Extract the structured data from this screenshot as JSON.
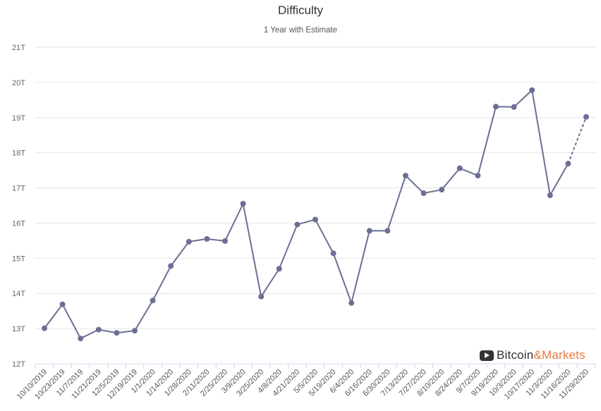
{
  "chart_data": {
    "type": "line",
    "title": "Difficulty",
    "subtitle": "1 Year with Estimate",
    "xlabel": "",
    "ylabel": "",
    "ylim": [
      12,
      21
    ],
    "ytick_labels": [
      "12T",
      "13T",
      "14T",
      "15T",
      "16T",
      "17T",
      "18T",
      "19T",
      "20T",
      "21T"
    ],
    "categories": [
      "10/10/2019",
      "10/23/2019",
      "11/7/2019",
      "11/21/2019",
      "12/5/2019",
      "12/19/2019",
      "1/1/2020",
      "1/14/2020",
      "1/28/2020",
      "2/11/2020",
      "2/25/2020",
      "3/9/2020",
      "3/25/2020",
      "4/8/2020",
      "4/21/2020",
      "5/5/2020",
      "5/19/2020",
      "6/4/2020",
      "6/16/2020",
      "6/30/2020",
      "7/13/2020",
      "7/27/2020",
      "8/10/2020",
      "8/24/2020",
      "9/7/2020",
      "9/19/2020",
      "10/3/2020",
      "10/17/2020",
      "11/3/2020",
      "11/16/2020",
      "11/29/2020"
    ],
    "series": [
      {
        "values": [
          13.01,
          13.69,
          12.72,
          12.97,
          12.88,
          12.94,
          13.8,
          14.78,
          15.47,
          15.55,
          15.49,
          16.55,
          13.91,
          14.7,
          15.96,
          16.1,
          15.14,
          13.73,
          15.78,
          15.78,
          17.35,
          16.85,
          16.95,
          17.56,
          17.35,
          19.31,
          19.3,
          19.78,
          16.79,
          17.69,
          19.02
        ],
        "estimate_from_index": 29
      }
    ],
    "colors": {
      "line": "#6b6f93",
      "marker": "#6b6f93",
      "grid": "#e6e6e6",
      "axis": "#ccd6eb"
    },
    "grid": true,
    "legend": "none"
  },
  "brand": {
    "icon": "play-icon",
    "name_part1": "Bitcoin",
    "name_part2": "&Markets"
  }
}
